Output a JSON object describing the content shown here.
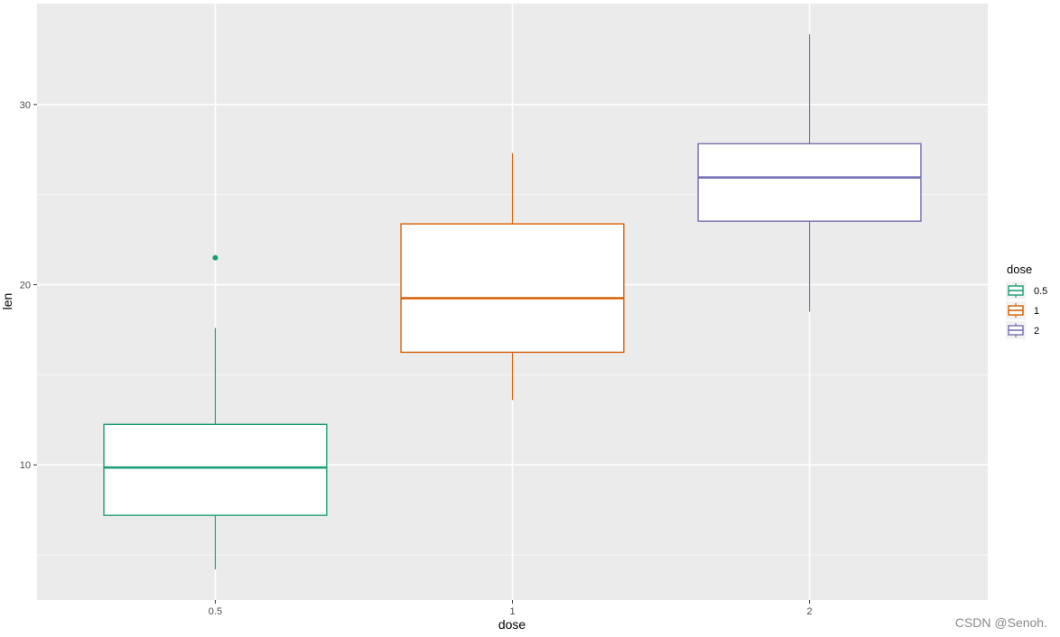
{
  "chart_data": {
    "type": "box",
    "xlabel": "dose",
    "ylabel": "len",
    "categories": [
      "0.5",
      "1",
      "2"
    ],
    "y_ticks": [
      10,
      20,
      30
    ],
    "ylim": [
      2.5,
      35.6
    ],
    "grid": true,
    "legend": {
      "title": "dose",
      "position": "right",
      "entries": [
        "0.5",
        "1",
        "2"
      ]
    },
    "colors": {
      "0.5": "#1b9e77",
      "1": "#d95f02",
      "2": "#7570b3",
      "panel": "#ebebeb",
      "grid": "#ffffff"
    },
    "boxes": [
      {
        "category": "0.5",
        "min": 4.2,
        "q1": 7.2,
        "median": 9.85,
        "q3": 12.25,
        "max": 17.6,
        "outliers": [
          21.5
        ]
      },
      {
        "category": "1",
        "min": 13.6,
        "q1": 16.25,
        "median": 19.25,
        "q3": 23.375,
        "max": 27.3,
        "outliers": []
      },
      {
        "category": "2",
        "min": 18.5,
        "q1": 23.525,
        "median": 25.95,
        "q3": 27.825,
        "max": 33.9,
        "outliers": []
      }
    ]
  },
  "watermark": "CSDN @Senoh."
}
